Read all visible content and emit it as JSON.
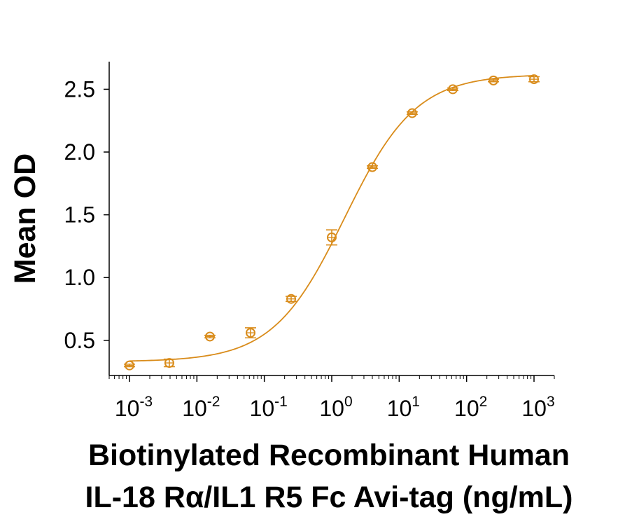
{
  "chart_data": {
    "type": "scatter",
    "title": "",
    "xlabel_lines": [
      "Biotinylated Recombinant Human",
      "IL-18 Rα/IL1 R5 Fc Avi-tag (ng/mL)"
    ],
    "ylabel": "Mean OD",
    "x_scale": "log",
    "xlim": [
      0.0005,
      2000
    ],
    "ylim": [
      0.22,
      2.72
    ],
    "x_ticks": [
      {
        "value": 0.001,
        "base": "10",
        "exp": "-3"
      },
      {
        "value": 0.01,
        "base": "10",
        "exp": "-2"
      },
      {
        "value": 0.1,
        "base": "10",
        "exp": "-1"
      },
      {
        "value": 1,
        "base": "10",
        "exp": "0"
      },
      {
        "value": 10,
        "base": "10",
        "exp": "1"
      },
      {
        "value": 100,
        "base": "10",
        "exp": "2"
      },
      {
        "value": 1000,
        "base": "10",
        "exp": "3"
      }
    ],
    "y_ticks": [
      {
        "value": 0.5,
        "label": "0.5"
      },
      {
        "value": 1.0,
        "label": "1.0"
      },
      {
        "value": 1.5,
        "label": "1.5"
      },
      {
        "value": 2.0,
        "label": "2.0"
      },
      {
        "value": 2.5,
        "label": "2.5"
      }
    ],
    "grid": false,
    "legend": "none",
    "color": "#D98C1B",
    "points": [
      {
        "x": 0.001,
        "y": 0.3,
        "err": 0.01
      },
      {
        "x": 0.0039,
        "y": 0.32,
        "err": 0.03
      },
      {
        "x": 0.0156,
        "y": 0.53,
        "err": 0.01
      },
      {
        "x": 0.0625,
        "y": 0.56,
        "err": 0.04
      },
      {
        "x": 0.25,
        "y": 0.83,
        "err": 0.02
      },
      {
        "x": 1.0,
        "y": 1.32,
        "err": 0.06
      },
      {
        "x": 4.0,
        "y": 1.88,
        "err": 0.01
      },
      {
        "x": 15.6,
        "y": 2.31,
        "err": 0.01
      },
      {
        "x": 62.5,
        "y": 2.5,
        "err": 0.01
      },
      {
        "x": 250,
        "y": 2.57,
        "err": 0.01
      },
      {
        "x": 1000,
        "y": 2.58,
        "err": 0.02
      }
    ],
    "fit_curve": {
      "model": "4PL",
      "bottom": 0.33,
      "top": 2.62,
      "ec50": 1.55,
      "hill": 0.82
    }
  }
}
